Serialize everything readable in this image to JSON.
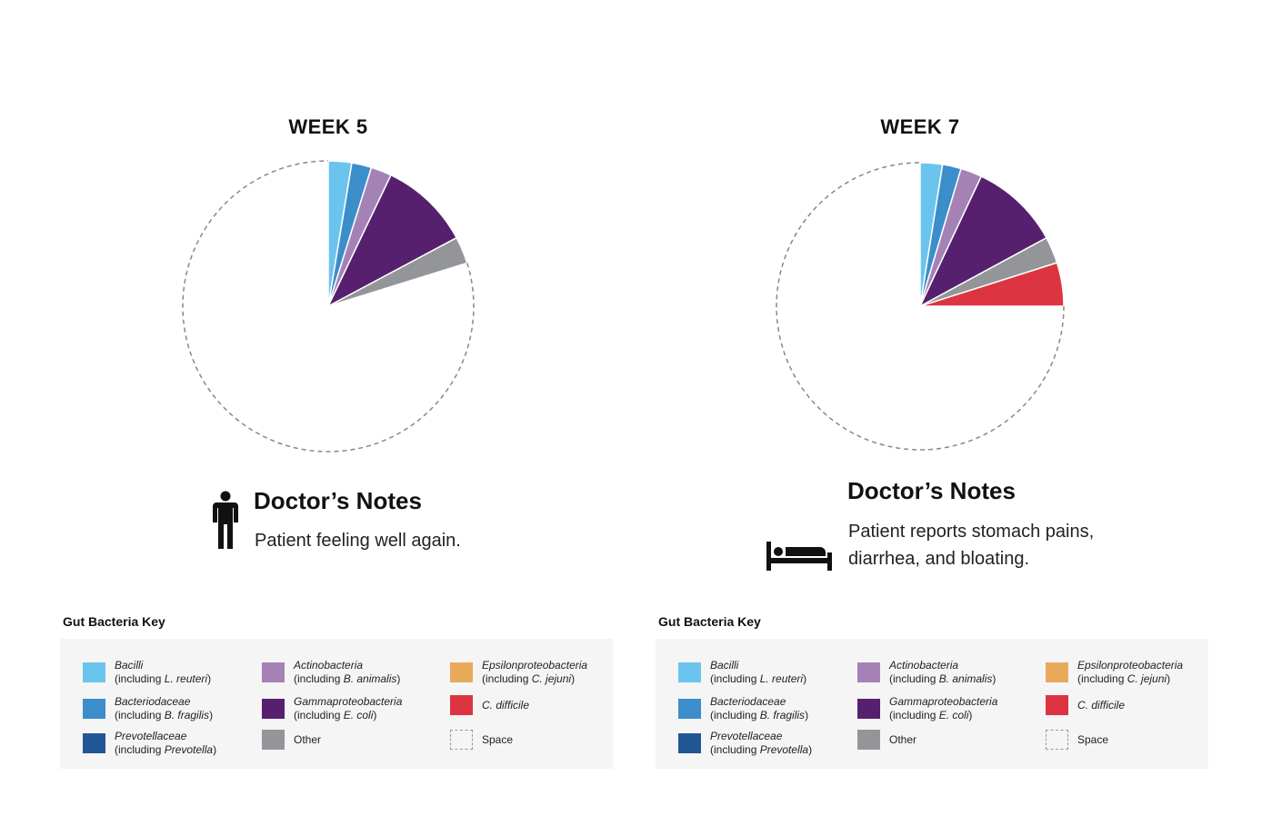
{
  "panels": [
    {
      "title": "WEEK 5",
      "notes_heading": "Doctor’s Notes",
      "notes_text": "Patient feeling well again.",
      "icon": "person-standing-icon",
      "key_heading": "Gut Bacteria Key"
    },
    {
      "title": "WEEK 7",
      "notes_heading": "Doctor’s Notes",
      "notes_text": "Patient reports stomach pains, diarrhea, and bloating.",
      "icon": "bed-icon",
      "key_heading": "Gut Bacteria Key"
    }
  ],
  "legend": [
    {
      "key": "bacilli",
      "name": "Bacilli",
      "pre": "(including ",
      "species": "L. reuteri",
      "post": ")",
      "color": "#6bc4ee"
    },
    {
      "key": "bacteriodaceae",
      "name": "Bacteriodaceae",
      "pre": "(including ",
      "species": "B. fragilis",
      "post": ")",
      "color": "#3b8ec9"
    },
    {
      "key": "prevotellaceae",
      "name": "Prevotellaceae",
      "pre": "(including ",
      "species": "Prevotella",
      "post": ")",
      "color": "#225796"
    },
    {
      "key": "actinobacteria",
      "name": "Actinobacteria",
      "pre": "(including ",
      "species": "B. animalis",
      "post": ")",
      "color": "#a582b6"
    },
    {
      "key": "gammaproteobacteria",
      "name": "Gammaproteobacteria",
      "pre": "(including ",
      "species": "E. coli",
      "post": ")",
      "color": "#56206f"
    },
    {
      "key": "other",
      "name": "Other",
      "color": "#939598",
      "plain": true
    },
    {
      "key": "epsilonproteobacteria",
      "name": "Epsilonproteobacteria",
      "pre": "(including ",
      "species": "C. jejuni",
      "post": ")",
      "color": "#e8aa5a"
    },
    {
      "key": "c-difficile",
      "name": "C. difficile",
      "color": "#dc3541"
    },
    {
      "key": "space",
      "name": "Space",
      "color": "none",
      "plain": true,
      "dashed": true
    }
  ],
  "chart_data": [
    {
      "type": "pie",
      "title": "WEEK 5",
      "unit": "percent (estimated)",
      "slices": [
        {
          "label": "Bacilli",
          "value": 2.6,
          "color": "#6bc4ee"
        },
        {
          "label": "Bacteriodaceae",
          "value": 2.2,
          "color": "#3b8ec9"
        },
        {
          "label": "Actinobacteria",
          "value": 2.3,
          "color": "#a582b6"
        },
        {
          "label": "Gammaproteobacteria",
          "value": 10.1,
          "color": "#56206f"
        },
        {
          "label": "Other",
          "value": 3.0,
          "color": "#939598"
        },
        {
          "label": "Space",
          "value": 79.8,
          "color": "none"
        }
      ]
    },
    {
      "type": "pie",
      "title": "WEEK 7",
      "unit": "percent (estimated)",
      "slices": [
        {
          "label": "Bacilli",
          "value": 2.5,
          "color": "#6bc4ee"
        },
        {
          "label": "Bacteriodaceae",
          "value": 2.1,
          "color": "#3b8ec9"
        },
        {
          "label": "Actinobacteria",
          "value": 2.4,
          "color": "#a582b6"
        },
        {
          "label": "Gammaproteobacteria",
          "value": 10.1,
          "color": "#56206f"
        },
        {
          "label": "Other",
          "value": 3.0,
          "color": "#939598"
        },
        {
          "label": "C. difficile",
          "value": 4.9,
          "color": "#dc3541"
        },
        {
          "label": "Space",
          "value": 75.0,
          "color": "none"
        }
      ]
    }
  ]
}
